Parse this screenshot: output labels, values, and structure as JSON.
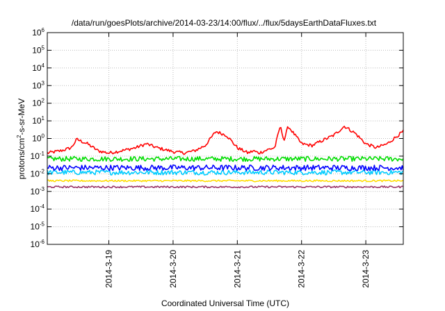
{
  "chart_data": {
    "type": "line",
    "title": "/data/run/goesPlots/archive/2014-03-23/14:00/flux/../flux/5daysEarthDataFluxes.txt",
    "xlabel": "Coordinated Universal Time (UTC)",
    "ylabel": {
      "pre": "protons/cm",
      "sup": "2",
      "post": "-s-sr-MeV"
    },
    "y_scale": "log",
    "ylim": [
      1e-06,
      1000000.0
    ],
    "y_ticks": [
      {
        "exp": "-6",
        "value": 1e-06
      },
      {
        "exp": "-5",
        "value": 1e-05
      },
      {
        "exp": "-4",
        "value": 0.0001
      },
      {
        "exp": "-3",
        "value": 0.001
      },
      {
        "exp": "-2",
        "value": 0.01
      },
      {
        "exp": "-1",
        "value": 0.1
      },
      {
        "exp": "0",
        "value": 1
      },
      {
        "exp": "1",
        "value": 10
      },
      {
        "exp": "2",
        "value": 100
      },
      {
        "exp": "3",
        "value": 1000
      },
      {
        "exp": "4",
        "value": 10000
      },
      {
        "exp": "5",
        "value": 100000
      },
      {
        "exp": "6",
        "value": 1000000
      }
    ],
    "xlim": [
      "2014-03-18 01:00",
      "2014-03-23 14:00"
    ],
    "x_ticks": [
      "2014-3-19",
      "2014-3-20",
      "2014-3-21",
      "2014-3-22",
      "2014-3-23"
    ],
    "grid": true,
    "series": [
      {
        "color": "#ff0000",
        "x": [
          "2014-03-18 01:00",
          "2014-03-18 06:00",
          "2014-03-18 10:00",
          "2014-03-18 12:00",
          "2014-03-18 16:00",
          "2014-03-18 20:00",
          "2014-03-19 00:00",
          "2014-03-19 06:00",
          "2014-03-19 10:00",
          "2014-03-19 14:00",
          "2014-03-19 18:00",
          "2014-03-20 00:00",
          "2014-03-20 04:00",
          "2014-03-20 08:00",
          "2014-03-20 12:00",
          "2014-03-20 16:00",
          "2014-03-20 20:00",
          "2014-03-21 00:00",
          "2014-03-21 04:00",
          "2014-03-21 06:00",
          "2014-03-21 08:00",
          "2014-03-21 12:00",
          "2014-03-21 14:00",
          "2014-03-21 16:00",
          "2014-03-21 17:30",
          "2014-03-21 19:00",
          "2014-03-21 21:00",
          "2014-03-22 00:00",
          "2014-03-22 04:00",
          "2014-03-22 08:00",
          "2014-03-22 12:00",
          "2014-03-22 16:00",
          "2014-03-22 20:00",
          "2014-03-23 00:00",
          "2014-03-23 04:00",
          "2014-03-23 08:00",
          "2014-03-23 12:00",
          "2014-03-23 14:00"
        ],
        "values": [
          0.15,
          0.2,
          0.3,
          0.9,
          0.5,
          0.2,
          0.15,
          0.22,
          0.3,
          0.5,
          0.3,
          0.18,
          0.15,
          0.2,
          0.4,
          2.5,
          1.5,
          0.3,
          0.15,
          0.2,
          0.15,
          0.25,
          0.3,
          5.0,
          0.8,
          5.0,
          2.0,
          0.5,
          0.4,
          0.8,
          1.5,
          5.0,
          2.0,
          0.5,
          0.3,
          0.5,
          1.5,
          2.5
        ]
      },
      {
        "color": "#00dd00",
        "x": [
          "2014-03-18 01:00",
          "2014-03-23 14:00"
        ],
        "values": [
          0.07,
          0.07
        ]
      },
      {
        "color": "#00ccff",
        "x": [
          "2014-03-18 01:00",
          "2014-03-23 14:00"
        ],
        "values": [
          0.012,
          0.012
        ]
      },
      {
        "color": "#0000ff",
        "x": [
          "2014-03-18 01:00",
          "2014-03-23 14:00"
        ],
        "values": [
          0.022,
          0.022
        ]
      },
      {
        "color": "#ffdd00",
        "x": [
          "2014-03-18 01:00",
          "2014-03-23 14:00"
        ],
        "values": [
          0.004,
          0.004
        ]
      },
      {
        "color": "#993366",
        "x": [
          "2014-03-18 01:00",
          "2014-03-23 14:00"
        ],
        "values": [
          0.0018,
          0.0018
        ]
      }
    ]
  }
}
